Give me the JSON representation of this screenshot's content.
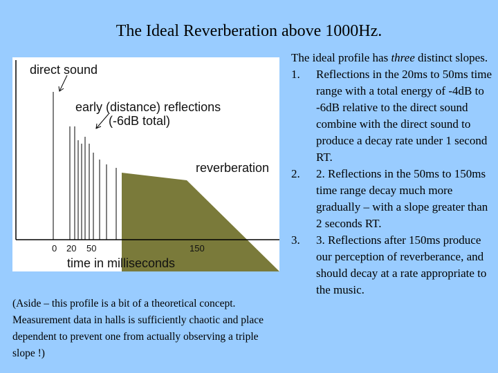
{
  "slide": {
    "title": "The Ideal Reverberation above 1000Hz."
  },
  "figure": {
    "labels": {
      "direct_sound": "direct sound",
      "early_reflections_line1": "early (distance) reflections",
      "early_reflections_line2": "(-6dB total)",
      "reverberation": "reverberation",
      "x_axis_title": "time in milliseconds"
    },
    "x_ticks": [
      "0",
      "20",
      "50",
      "150"
    ],
    "colors": {
      "reverb_fill": "#7a7a3a",
      "axis": "#000000"
    }
  },
  "aside": {
    "text": "(Aside – this profile is a bit of a theoretical concept. Measurement data in halls is sufficiently chaotic and place dependent to prevent one from actually observing a triple slope !)"
  },
  "description": {
    "intro_prefix": "The ideal profile has ",
    "intro_emphasis": "three",
    "intro_suffix": " distinct slopes.",
    "items": [
      {
        "number": "1.",
        "text": "Reflections in the 20ms to 50ms time range with a total energy of -4dB to -6dB relative to the direct sound combine with the direct sound to produce a decay rate under 1 second RT."
      },
      {
        "number": "2.",
        "text": "2. Reflections in the 50ms to 150ms time range decay much more gradually – with a slope greater than 2 seconds RT."
      },
      {
        "number": "3.",
        "text": "3. Reflections after 150ms produce our perception of reverberance, and should decay at a rate appropriate to the music."
      }
    ]
  }
}
